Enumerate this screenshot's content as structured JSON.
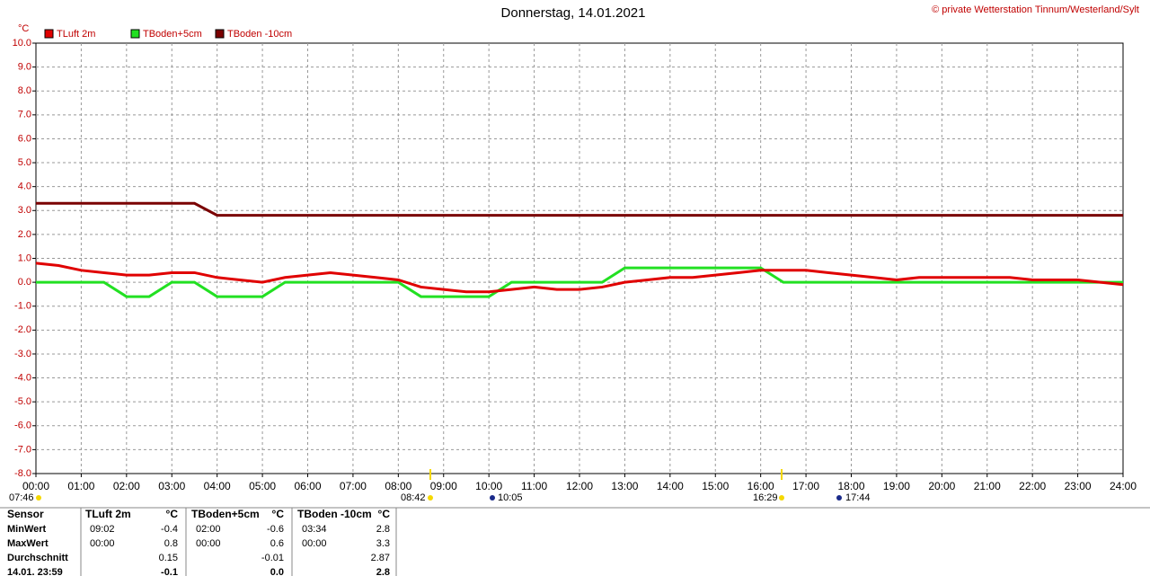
{
  "chart_data": {
    "type": "line",
    "title": "Donnerstag, 14.01.2021",
    "credit": "© private Wetterstation Tinnum/Westerland/Sylt",
    "y_label": "°C",
    "x": [
      0,
      0.5,
      1,
      1.5,
      2,
      2.5,
      3,
      3.5,
      4,
      4.5,
      5,
      5.5,
      6,
      6.5,
      7,
      7.5,
      8,
      8.5,
      9,
      9.5,
      10,
      10.5,
      11,
      11.5,
      12,
      12.5,
      13,
      13.5,
      14,
      14.5,
      15,
      15.5,
      16,
      16.5,
      17,
      17.5,
      18,
      18.5,
      19,
      19.5,
      20,
      20.5,
      21,
      21.5,
      22,
      22.5,
      23,
      23.5,
      24
    ],
    "series": [
      {
        "name": "TLuft 2m",
        "color": "#e00000",
        "values": [
          0.8,
          0.7,
          0.5,
          0.4,
          0.3,
          0.3,
          0.4,
          0.4,
          0.2,
          0.1,
          0.0,
          0.2,
          0.3,
          0.4,
          0.3,
          0.2,
          0.1,
          -0.2,
          -0.3,
          -0.4,
          -0.4,
          -0.3,
          -0.2,
          -0.3,
          -0.3,
          -0.2,
          0.0,
          0.1,
          0.2,
          0.2,
          0.3,
          0.4,
          0.5,
          0.5,
          0.5,
          0.4,
          0.3,
          0.2,
          0.1,
          0.2,
          0.2,
          0.2,
          0.2,
          0.2,
          0.1,
          0.1,
          0.1,
          0.0,
          -0.1
        ]
      },
      {
        "name": "TBoden+5cm",
        "color": "#22e022",
        "values": [
          0,
          0,
          0,
          0,
          -0.6,
          -0.6,
          0,
          0,
          -0.6,
          -0.6,
          -0.6,
          0,
          0,
          0,
          0,
          0,
          0,
          -0.6,
          -0.6,
          -0.6,
          -0.6,
          0,
          0,
          0,
          0,
          0,
          0.6,
          0.6,
          0.6,
          0.6,
          0.6,
          0.6,
          0.6,
          0,
          0,
          0,
          0,
          0,
          0,
          0,
          0,
          0,
          0,
          0,
          0,
          0,
          0,
          0,
          0
        ]
      },
      {
        "name": "TBoden -10cm",
        "color": "#7a0000",
        "values": [
          3.3,
          3.3,
          3.3,
          3.3,
          3.3,
          3.3,
          3.3,
          3.3,
          2.8,
          2.8,
          2.8,
          2.8,
          2.8,
          2.8,
          2.8,
          2.8,
          2.8,
          2.8,
          2.8,
          2.8,
          2.8,
          2.8,
          2.8,
          2.8,
          2.8,
          2.8,
          2.8,
          2.8,
          2.8,
          2.8,
          2.8,
          2.8,
          2.8,
          2.8,
          2.8,
          2.8,
          2.8,
          2.8,
          2.8,
          2.8,
          2.8,
          2.8,
          2.8,
          2.8,
          2.8,
          2.8,
          2.8,
          2.8,
          2.8
        ]
      }
    ],
    "xlim": [
      0,
      24
    ],
    "xticks": [
      {
        "value": 0,
        "label": "00:00"
      },
      {
        "value": 1,
        "label": "01:00"
      },
      {
        "value": 2,
        "label": "02:00"
      },
      {
        "value": 3,
        "label": "03:00"
      },
      {
        "value": 4,
        "label": "04:00"
      },
      {
        "value": 5,
        "label": "05:00"
      },
      {
        "value": 6,
        "label": "06:00"
      },
      {
        "value": 7,
        "label": "07:00"
      },
      {
        "value": 8,
        "label": "08:00"
      },
      {
        "value": 9,
        "label": "09:00"
      },
      {
        "value": 10,
        "label": "10:00"
      },
      {
        "value": 11,
        "label": "11:00"
      },
      {
        "value": 12,
        "label": "12:00"
      },
      {
        "value": 13,
        "label": "13:00"
      },
      {
        "value": 14,
        "label": "14:00"
      },
      {
        "value": 15,
        "label": "15:00"
      },
      {
        "value": 16,
        "label": "16:00"
      },
      {
        "value": 17,
        "label": "17:00"
      },
      {
        "value": 18,
        "label": "18:00"
      },
      {
        "value": 19,
        "label": "19:00"
      },
      {
        "value": 20,
        "label": "20:00"
      },
      {
        "value": 21,
        "label": "21:00"
      },
      {
        "value": 22,
        "label": "22:00"
      },
      {
        "value": 23,
        "label": "23:00"
      },
      {
        "value": 24,
        "label": "24:00"
      }
    ],
    "ylim": [
      -8,
      10
    ],
    "yticks": [
      {
        "value": 10,
        "label": "10.0"
      },
      {
        "value": 9,
        "label": "9.0"
      },
      {
        "value": 8,
        "label": "8.0"
      },
      {
        "value": 7,
        "label": "7.0"
      },
      {
        "value": 6,
        "label": "6.0"
      },
      {
        "value": 5,
        "label": "5.0"
      },
      {
        "value": 4,
        "label": "4.0"
      },
      {
        "value": 3,
        "label": "3.0"
      },
      {
        "value": 2,
        "label": "2.0"
      },
      {
        "value": 1,
        "label": "1.0"
      },
      {
        "value": 0,
        "label": "0.0"
      },
      {
        "value": -1,
        "label": "-1.0"
      },
      {
        "value": -2,
        "label": "-2.0"
      },
      {
        "value": -3,
        "label": "-3.0"
      },
      {
        "value": -4,
        "label": "-4.0"
      },
      {
        "value": -5,
        "label": "-5.0"
      },
      {
        "value": -6,
        "label": "-6.0"
      },
      {
        "value": -7,
        "label": "-7.0"
      },
      {
        "value": -8,
        "label": "-8.0"
      }
    ],
    "grid": true,
    "legend": "top",
    "sun_times": [
      "07:46",
      "08:42",
      "10:05",
      "16:29",
      "17:44"
    ]
  },
  "table": {
    "header": [
      "Sensor",
      "TLuft 2m",
      "°C",
      "TBoden+5cm",
      "°C",
      "TBoden -10cm",
      "°C"
    ],
    "rows": [
      [
        "MinWert",
        "09:02",
        "-0.4",
        "02:00",
        "-0.6",
        "03:34",
        "2.8"
      ],
      [
        "MaxWert",
        "00:00",
        "0.8",
        "00:00",
        "0.6",
        "00:00",
        "3.3"
      ],
      [
        "Durchschnitt",
        null,
        "0.15",
        null,
        "-0.01",
        null,
        "2.87"
      ],
      [
        "14.01. 23:59",
        null,
        "-0.1",
        null,
        "0.0",
        null,
        "2.8"
      ]
    ]
  }
}
